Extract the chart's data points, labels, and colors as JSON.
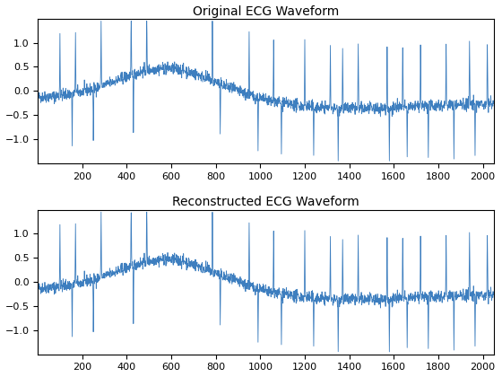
{
  "title1": "Original ECG Waveform",
  "title2": "Reconstructed ECG Waveform",
  "xlim": [
    1,
    2048
  ],
  "ylim": [
    -1.5,
    1.5
  ],
  "yticks": [
    -1,
    -0.5,
    0,
    0.5,
    1
  ],
  "xticks": [
    200,
    400,
    600,
    800,
    1000,
    1200,
    1400,
    1600,
    1800,
    2000
  ],
  "line_color": "#3d7ebf",
  "line_width": 0.6,
  "bg_color": "#ffffff",
  "title_fontsize": 10,
  "tick_fontsize": 8,
  "figsize": [
    5.6,
    4.2
  ],
  "dpi": 100,
  "qrs_peaks": [
    100,
    170,
    285,
    420,
    490,
    785,
    950,
    1060,
    1200,
    1315,
    1370,
    1440,
    1570,
    1640,
    1720,
    1835,
    1940,
    2020
  ],
  "neg_spikes": [
    155,
    250,
    430,
    820,
    990,
    1095,
    1240,
    1350,
    1580,
    1660,
    1755,
    1870,
    1965
  ]
}
